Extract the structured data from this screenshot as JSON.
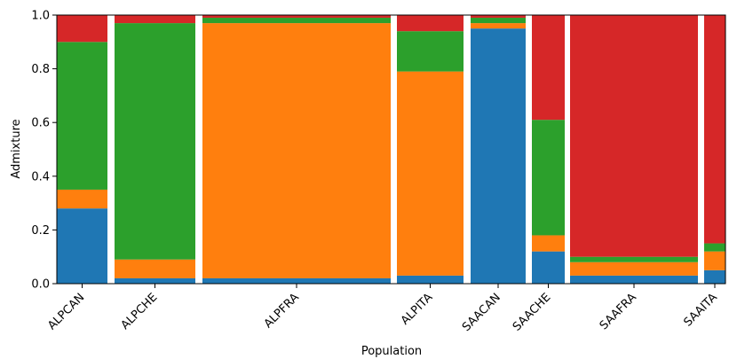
{
  "chart_data": {
    "type": "bar",
    "subtype": "stacked-admixture",
    "title": "",
    "xlabel": "Population",
    "ylabel": "Admixture",
    "ylim": [
      0,
      1
    ],
    "yticks": [
      "0.0",
      "0.2",
      "0.4",
      "0.6",
      "0.8",
      "1.0"
    ],
    "grid": false,
    "legend": "none",
    "component_colors": [
      "#1f77b4",
      "#ff7f0e",
      "#2ca02c",
      "#d62728"
    ],
    "stack_order": [
      "blue",
      "orange",
      "green",
      "red"
    ],
    "populations": [
      {
        "label": "ALPCAN",
        "values": [
          0.28,
          0.07,
          0.55,
          0.1
        ]
      },
      {
        "label": "ALPCHE",
        "values": [
          0.02,
          0.07,
          0.88,
          0.03
        ]
      },
      {
        "label": "ALPFRA",
        "values": [
          0.02,
          0.95,
          0.02,
          0.01
        ]
      },
      {
        "label": "ALPITA",
        "values": [
          0.03,
          0.76,
          0.15,
          0.06
        ]
      },
      {
        "label": "SAACAN",
        "values": [
          0.95,
          0.02,
          0.02,
          0.01
        ]
      },
      {
        "label": "SAACHE",
        "values": [
          0.12,
          0.06,
          0.43,
          0.39
        ]
      },
      {
        "label": "SAAFRA",
        "values": [
          0.03,
          0.05,
          0.02,
          0.9
        ]
      },
      {
        "label": "SAAITA",
        "values": [
          0.05,
          0.07,
          0.03,
          0.85
        ]
      }
    ]
  }
}
